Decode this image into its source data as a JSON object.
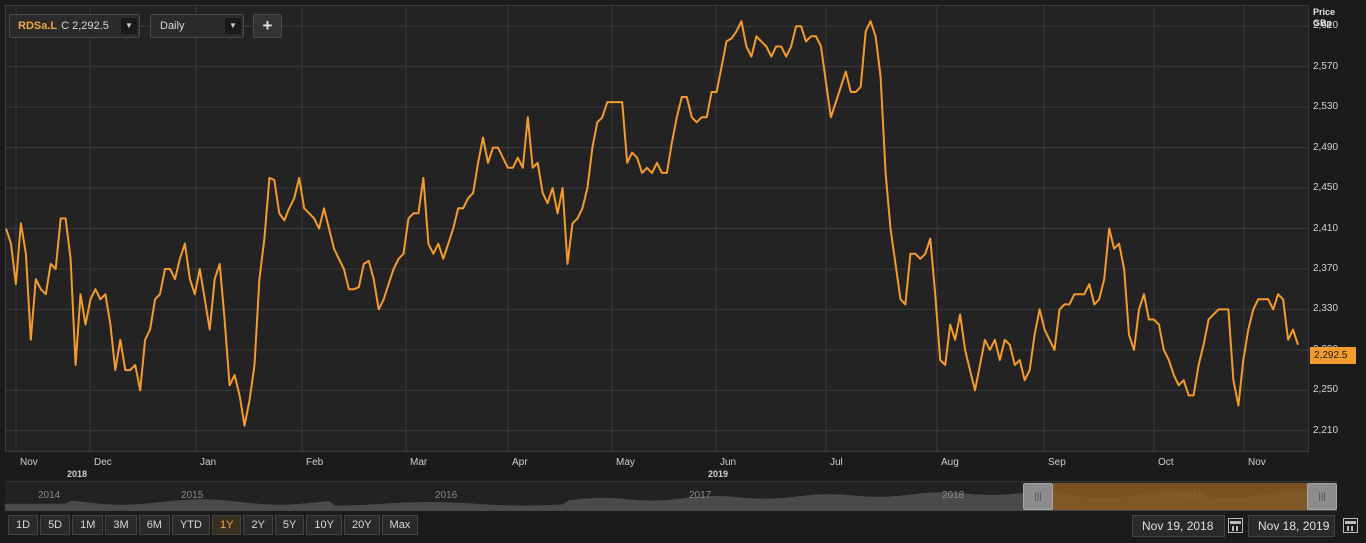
{
  "toolbar": {
    "ric_symbol": "RDSa.L",
    "ric_close": "C 2,292.5",
    "interval": "Daily",
    "add_label": "+"
  },
  "axis": {
    "price_label_line1": "Price",
    "price_label_line2": "GBp",
    "last_price": "2,292.5"
  },
  "navigator": {
    "years": [
      "2014",
      "2015",
      "2016",
      "2017",
      "2018",
      "2019"
    ]
  },
  "range_buttons": [
    "1D",
    "5D",
    "1M",
    "3M",
    "6M",
    "YTD",
    "1Y",
    "2Y",
    "5Y",
    "10Y",
    "20Y",
    "Max"
  ],
  "active_range": "1Y",
  "date_range": {
    "start": "Nov 19, 2018",
    "end": "Nov 18, 2019"
  },
  "colors": {
    "line": "#f59a2e",
    "background": "#232323",
    "grid": "#3a3a3a",
    "accent": "#f0a64a"
  },
  "chart_data": {
    "type": "line",
    "series": [
      {
        "values": [
          2410,
          2395,
          2355,
          2415,
          2385,
          2300,
          2360,
          2350,
          2345,
          2375,
          2370,
          2420,
          2420,
          2380,
          2275,
          2345,
          2315,
          2340,
          2350,
          2340,
          2345,
          2315,
          2270,
          2300,
          2270,
          2270,
          2275,
          2250,
          2300,
          2310,
          2340,
          2345,
          2370,
          2370,
          2360,
          2380,
          2395,
          2360,
          2345,
          2370,
          2340,
          2310,
          2360,
          2375,
          2320,
          2255,
          2265,
          2245,
          2215,
          2240,
          2275,
          2360,
          2400,
          2460,
          2458,
          2425,
          2418,
          2430,
          2440,
          2460,
          2430,
          2425,
          2420,
          2410,
          2430,
          2410,
          2390,
          2380,
          2370,
          2350,
          2350,
          2352,
          2375,
          2378,
          2360,
          2330,
          2340,
          2355,
          2370,
          2380,
          2385,
          2420,
          2425,
          2425,
          2460,
          2395,
          2385,
          2395,
          2380,
          2395,
          2410,
          2430,
          2430,
          2440,
          2445,
          2475,
          2500,
          2475,
          2490,
          2490,
          2480,
          2470,
          2470,
          2480,
          2470,
          2520,
          2470,
          2475,
          2445,
          2435,
          2450,
          2425,
          2450,
          2375,
          2415,
          2420,
          2430,
          2450,
          2490,
          2515,
          2520,
          2535,
          2535,
          2535,
          2535,
          2475,
          2485,
          2480,
          2465,
          2470,
          2465,
          2475,
          2465,
          2465,
          2495,
          2520,
          2540,
          2540,
          2520,
          2515,
          2520,
          2520,
          2545,
          2545,
          2570,
          2595,
          2598,
          2605,
          2615,
          2590,
          2580,
          2600,
          2595,
          2590,
          2580,
          2590,
          2590,
          2580,
          2590,
          2610,
          2610,
          2595,
          2600,
          2600,
          2590,
          2555,
          2520,
          2535,
          2550,
          2565,
          2545,
          2545,
          2550,
          2605,
          2615,
          2600,
          2560,
          2465,
          2410,
          2375,
          2340,
          2335,
          2385,
          2385,
          2380,
          2385,
          2400,
          2345,
          2280,
          2275,
          2315,
          2300,
          2325,
          2290,
          2270,
          2250,
          2275,
          2300,
          2290,
          2300,
          2280,
          2300,
          2295,
          2275,
          2280,
          2260,
          2270,
          2305,
          2330,
          2310,
          2300,
          2290,
          2330,
          2335,
          2335,
          2345,
          2345,
          2345,
          2355,
          2335,
          2340,
          2360,
          2410,
          2390,
          2395,
          2370,
          2305,
          2290,
          2330,
          2345,
          2320,
          2320,
          2315,
          2290,
          2280,
          2265,
          2255,
          2260,
          2245,
          2245,
          2275,
          2295,
          2320,
          2325,
          2330,
          2330,
          2330,
          2260,
          2235,
          2280,
          2310,
          2330,
          2340,
          2340,
          2340,
          2330,
          2345,
          2340,
          2300,
          2310,
          2295
        ]
      }
    ],
    "x_labels": [
      "Nov",
      "Dec",
      "Jan",
      "Feb",
      "Mar",
      "Apr",
      "May",
      "Jun",
      "Jul",
      "Aug",
      "Sep",
      "Oct",
      "Nov"
    ],
    "year_labels": [
      "2018",
      "2019"
    ],
    "y_ticks": [
      "2,210",
      "2,250",
      "2,290",
      "2,330",
      "2,370",
      "2,410",
      "2,450",
      "2,490",
      "2,530",
      "2,570",
      "2,610"
    ],
    "ylim": [
      2190,
      2630
    ],
    "grid": true,
    "last_value": 2292.5
  }
}
